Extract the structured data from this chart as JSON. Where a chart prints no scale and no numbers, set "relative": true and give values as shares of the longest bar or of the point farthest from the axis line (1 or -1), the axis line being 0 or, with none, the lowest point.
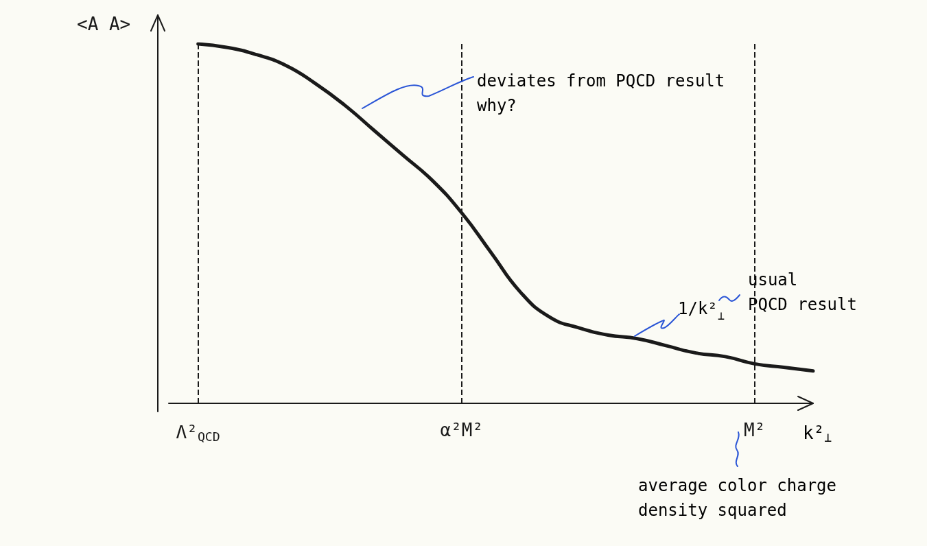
{
  "chart_data": {
    "type": "line",
    "relative": true,
    "ylabel": "<A A>",
    "xlabel": "k²$_{⊥}$",
    "categories": [
      null,
      "Λ²$_{QCD}$",
      null,
      null,
      null,
      null,
      null,
      null,
      null,
      null,
      "α²M²",
      null,
      null,
      null,
      null,
      null,
      null,
      null,
      null,
      null,
      "M²",
      null,
      null
    ],
    "series": [
      {
        "color": "#1a1a1a",
        "values": [
          null,
          1.0,
          0.99,
          0.97,
          0.94,
          0.89,
          0.83,
          0.76,
          0.69,
          0.62,
          0.53,
          0.42,
          0.31,
          0.24,
          0.21,
          0.19,
          0.18,
          0.16,
          0.14,
          0.13,
          0.11,
          0.1,
          0.09
        ]
      }
    ],
    "marker": "none",
    "ref_lines": [
      {
        "axis": "x",
        "value": "Λ²$_{QCD}$",
        "line_style": "dashed",
        "color": "#1a1a1a"
      },
      {
        "axis": "x",
        "value": "α²M²",
        "line_style": "dashed",
        "color": "#1a1a1a"
      },
      {
        "axis": "x",
        "value": "M²",
        "line_style": "dashed",
        "color": "#1a1a1a"
      }
    ],
    "annotations": [
      "deviates from PQCD result\nwhy?",
      "1/k²$_{⊥}$",
      "usual\nPQCD result",
      "average color charge\ndensity squared"
    ]
  }
}
